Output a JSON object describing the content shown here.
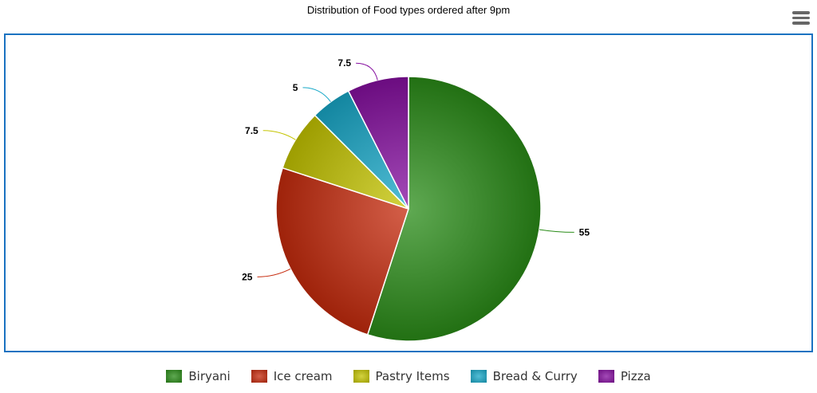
{
  "chart_data": {
    "type": "pie",
    "title": "Distribution of Food types ordered after 9pm",
    "categories": [
      "Biryani",
      "Ice cream",
      "Pastry Items",
      "Bread & Curry",
      "Pizza"
    ],
    "values": [
      55,
      25,
      7.5,
      5,
      7.5
    ],
    "data_labels": [
      "55",
      "25",
      "7.5",
      "5",
      "7.5"
    ],
    "colors": [
      "#2a8c18",
      "#c62a0c",
      "#c4c400",
      "#18a8c8",
      "#860fa0"
    ],
    "legend_position": "bottom"
  },
  "menu_icon": "hamburger-menu-icon"
}
